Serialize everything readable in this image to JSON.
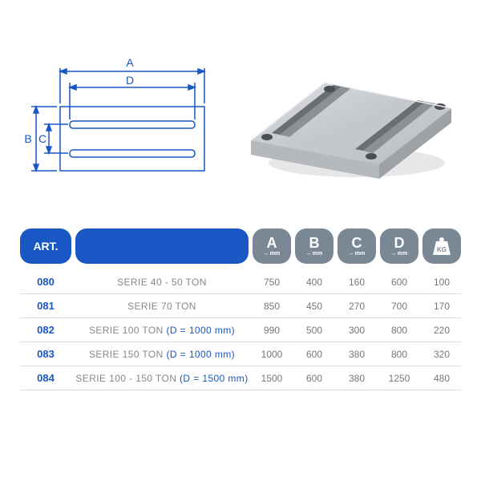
{
  "diagram": {
    "labels": {
      "A": "A",
      "B": "B",
      "C": "C",
      "D": "D"
    },
    "stroke_color": "#1857c4",
    "stroke_width": 1.5,
    "fill_color": "#ffffff",
    "font_size": 14,
    "slot_count": 2
  },
  "photo": {
    "plate_top_color": "#c4c7cc",
    "plate_side_color": "#9ea1a6",
    "plate_front_color": "#b5b8bd",
    "slot_color": "#6a6d72",
    "hole_color": "#4b4e52"
  },
  "table": {
    "header_bg": "#1857c4",
    "badge_bg": "#7a8794",
    "text_color_primary": "#1857c4",
    "text_color_secondary": "#808080",
    "row_border": "#dcdcdc",
    "art_label": "ART.",
    "columns": [
      {
        "letter": "A",
        "unit": "mm"
      },
      {
        "letter": "B",
        "unit": "mm"
      },
      {
        "letter": "C",
        "unit": "mm"
      },
      {
        "letter": "D",
        "unit": "mm"
      }
    ],
    "kg_label": "KG",
    "rows": [
      {
        "art": "080",
        "desc": "SERIE 40 - 50 TON",
        "note": "",
        "A": "750",
        "B": "400",
        "C": "160",
        "D": "600",
        "KG": "100"
      },
      {
        "art": "081",
        "desc": "SERIE 70 TON",
        "note": "",
        "A": "850",
        "B": "450",
        "C": "270",
        "D": "700",
        "KG": "170"
      },
      {
        "art": "082",
        "desc": "SERIE 100 TON",
        "note": "(D = 1000 mm)",
        "A": "990",
        "B": "500",
        "C": "300",
        "D": "800",
        "KG": "220"
      },
      {
        "art": "083",
        "desc": "SERIE 150 TON",
        "note": "(D = 1000 mm)",
        "A": "1000",
        "B": "600",
        "C": "380",
        "D": "800",
        "KG": "320"
      },
      {
        "art": "084",
        "desc": "SERIE 100 - 150 TON",
        "note": "(D = 1500 mm)",
        "A": "1500",
        "B": "600",
        "C": "380",
        "D": "1250",
        "KG": "480"
      }
    ]
  }
}
